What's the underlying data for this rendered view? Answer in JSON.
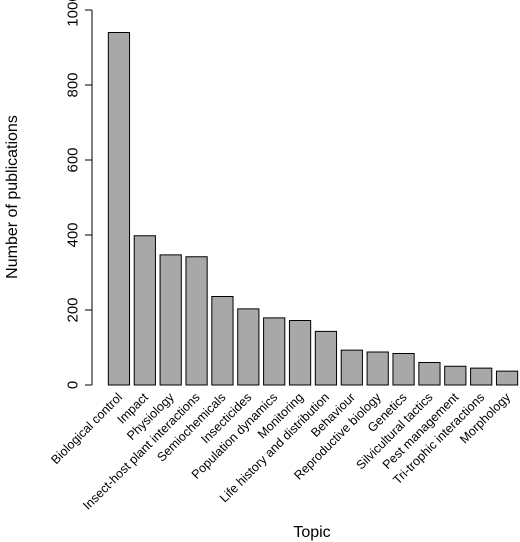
{
  "chart_data": {
    "type": "bar",
    "title": "",
    "xlabel": "Topic",
    "ylabel": "Number of publications",
    "ylim": [
      0,
      1000
    ],
    "yticks": [
      0,
      200,
      400,
      600,
      800,
      1000
    ],
    "grid": false,
    "legend": "none",
    "bar_color": "#a8a8a8",
    "categories": [
      "Biological control",
      "Impact",
      "Physiology",
      "Insect-host plant interactions",
      "Semiochemicals",
      "Insecticides",
      "Population dynamics",
      "Monitoring",
      "Life history and distribution",
      "Behaviour",
      "Reproductive biology",
      "Genetics",
      "Silvicultural tactics",
      "Pest management",
      "Tri-trophic interactions",
      "Morphology"
    ],
    "values": [
      940,
      398,
      347,
      342,
      236,
      203,
      179,
      172,
      143,
      93,
      88,
      84,
      60,
      50,
      45,
      37
    ]
  }
}
